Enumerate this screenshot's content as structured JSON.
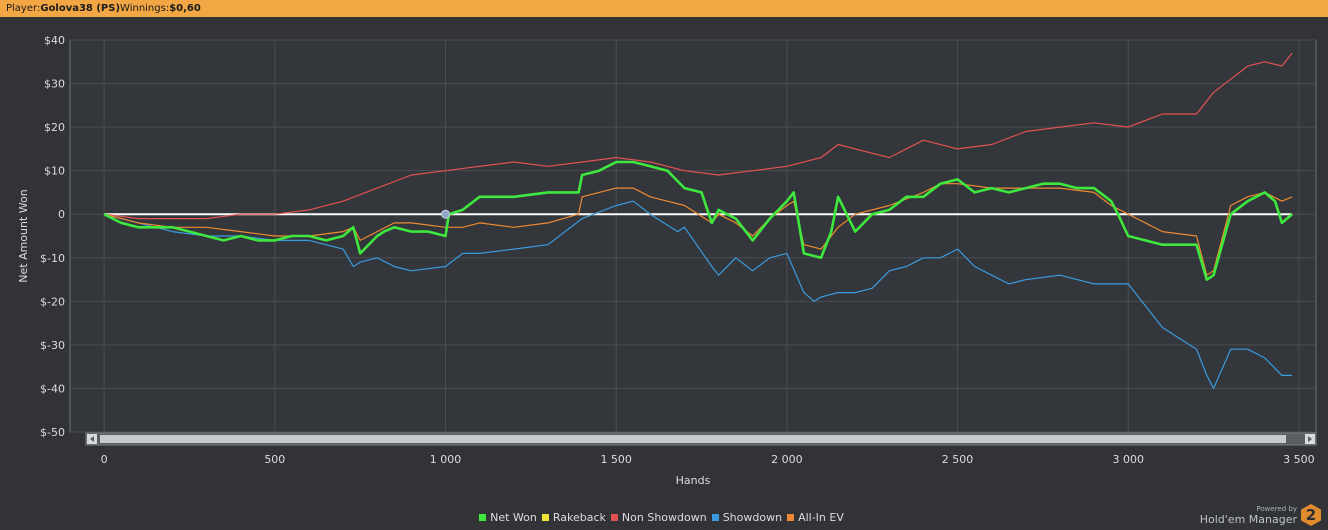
{
  "header": {
    "player_label": "Player:",
    "player_name": "Golova38 (PS)",
    "winnings_label": "Winnings:",
    "winnings_value": "$0,60"
  },
  "branding": {
    "powered_by": "Powered by",
    "product": "Hold'em Manager",
    "badge": "2"
  },
  "chart_data": {
    "type": "line",
    "xlabel": "Hands",
    "ylabel": "Net Amount Won",
    "xlim": [
      -100,
      3550
    ],
    "ylim": [
      -50,
      40
    ],
    "x_ticks": [
      0,
      500,
      1000,
      1500,
      2000,
      2500,
      3000,
      3500
    ],
    "x_tick_labels": [
      "0",
      "500",
      "1 000",
      "1 500",
      "2 000",
      "2 500",
      "3 000",
      "3 500"
    ],
    "y_ticks": [
      40,
      30,
      20,
      10,
      0,
      -10,
      -20,
      -30,
      -40,
      -50
    ],
    "y_tick_labels": [
      "$40",
      "$30",
      "$20",
      "$10",
      "0",
      "$-10",
      "$-20",
      "$-30",
      "$-40",
      "$-50"
    ],
    "grid": true,
    "legend_position": "bottom-center",
    "series": [
      {
        "name": "Net Won",
        "color": "#3ee83e",
        "x": [
          0,
          50,
          100,
          150,
          200,
          250,
          300,
          350,
          400,
          450,
          500,
          550,
          600,
          650,
          700,
          730,
          750,
          800,
          820,
          850,
          900,
          950,
          1000,
          1010,
          1050,
          1100,
          1200,
          1300,
          1390,
          1400,
          1450,
          1500,
          1550,
          1600,
          1650,
          1700,
          1750,
          1780,
          1800,
          1850,
          1900,
          1950,
          2000,
          2020,
          2050,
          2100,
          2130,
          2150,
          2200,
          2250,
          2300,
          2350,
          2400,
          2450,
          2500,
          2550,
          2600,
          2650,
          2700,
          2750,
          2800,
          2850,
          2900,
          2950,
          2970,
          3000,
          3050,
          3100,
          3150,
          3200,
          3230,
          3250,
          3300,
          3350,
          3400,
          3430,
          3450,
          3480
        ],
        "y": [
          0,
          -2,
          -3,
          -3,
          -3,
          -4,
          -5,
          -6,
          -5,
          -6,
          -6,
          -5,
          -5,
          -6,
          -5,
          -3,
          -9,
          -5,
          -4,
          -3,
          -4,
          -4,
          -5,
          0,
          1,
          4,
          4,
          5,
          5,
          9,
          10,
          12,
          12,
          11,
          10,
          6,
          5,
          -2,
          1,
          -1,
          -6,
          -1,
          3,
          5,
          -9,
          -10,
          -4,
          4,
          -4,
          0,
          1,
          4,
          4,
          7,
          8,
          5,
          6,
          5,
          6,
          7,
          7,
          6,
          6,
          3,
          0,
          -5,
          -6,
          -7,
          -7,
          -7,
          -15,
          -14,
          0,
          3,
          5,
          3,
          -2,
          0
        ]
      },
      {
        "name": "Rakeback",
        "color": "#f0e63a",
        "x": [
          0,
          3480
        ],
        "y": [
          0,
          0
        ]
      },
      {
        "name": "Non Showdown",
        "color": "#e35252",
        "x": [
          0,
          100,
          200,
          300,
          400,
          500,
          600,
          700,
          800,
          900,
          1000,
          1100,
          1200,
          1300,
          1400,
          1500,
          1600,
          1700,
          1800,
          1900,
          2000,
          2100,
          2150,
          2200,
          2300,
          2400,
          2500,
          2600,
          2700,
          2800,
          2900,
          3000,
          3100,
          3200,
          3230,
          3250,
          3300,
          3350,
          3400,
          3450,
          3480
        ],
        "y": [
          0,
          -1,
          -1,
          -1,
          0,
          0,
          1,
          3,
          6,
          9,
          10,
          11,
          12,
          11,
          12,
          13,
          12,
          10,
          9,
          10,
          11,
          13,
          16,
          15,
          13,
          17,
          15,
          16,
          19,
          20,
          21,
          20,
          23,
          23,
          26,
          28,
          31,
          34,
          35,
          34,
          37
        ]
      },
      {
        "name": "Showdown",
        "color": "#3a9be0",
        "x": [
          0,
          100,
          200,
          300,
          400,
          500,
          600,
          700,
          730,
          750,
          800,
          850,
          900,
          1000,
          1050,
          1100,
          1200,
          1300,
          1400,
          1500,
          1550,
          1600,
          1680,
          1700,
          1780,
          1800,
          1850,
          1900,
          1950,
          2000,
          2050,
          2080,
          2100,
          2150,
          2200,
          2250,
          2300,
          2350,
          2400,
          2450,
          2500,
          2550,
          2600,
          2650,
          2700,
          2800,
          2900,
          3000,
          3100,
          3200,
          3230,
          3250,
          3300,
          3350,
          3400,
          3450,
          3480
        ],
        "y": [
          0,
          -2,
          -4,
          -5,
          -5,
          -6,
          -6,
          -8,
          -12,
          -11,
          -10,
          -12,
          -13,
          -12,
          -9,
          -9,
          -8,
          -7,
          -1,
          2,
          3,
          0,
          -4,
          -3,
          -12,
          -14,
          -10,
          -13,
          -10,
          -9,
          -18,
          -20,
          -19,
          -18,
          -18,
          -17,
          -13,
          -12,
          -10,
          -10,
          -8,
          -12,
          -14,
          -16,
          -15,
          -14,
          -16,
          -16,
          -26,
          -31,
          -37,
          -40,
          -31,
          -31,
          -33,
          -37,
          -37
        ]
      },
      {
        "name": "All-In EV",
        "color": "#ee8a32",
        "x": [
          0,
          100,
          200,
          300,
          400,
          500,
          600,
          700,
          730,
          750,
          800,
          850,
          900,
          1000,
          1050,
          1100,
          1200,
          1300,
          1390,
          1400,
          1500,
          1550,
          1600,
          1650,
          1700,
          1780,
          1800,
          1850,
          1900,
          1950,
          2000,
          2020,
          2050,
          2100,
          2150,
          2200,
          2300,
          2400,
          2450,
          2500,
          2600,
          2700,
          2800,
          2900,
          2950,
          3000,
          3100,
          3200,
          3230,
          3250,
          3300,
          3350,
          3400,
          3450,
          3480
        ],
        "y": [
          0,
          -2,
          -3,
          -3,
          -4,
          -5,
          -5,
          -4,
          -3,
          -6,
          -4,
          -2,
          -2,
          -3,
          -3,
          -2,
          -3,
          -2,
          0,
          4,
          6,
          6,
          4,
          3,
          2,
          -2,
          0,
          -2,
          -5,
          -1,
          2,
          3,
          -7,
          -8,
          -3,
          0,
          2,
          5,
          7,
          7,
          6,
          6,
          6,
          5,
          2,
          0,
          -4,
          -5,
          -14,
          -13,
          2,
          4,
          5,
          3,
          4
        ]
      }
    ]
  }
}
